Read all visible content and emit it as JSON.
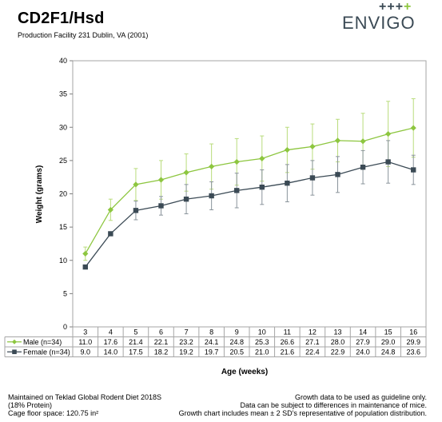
{
  "header": {
    "title": "CD2F1/Hsd",
    "subtitle": "Production Facility 231 Dublin, VA (2001)"
  },
  "logo": {
    "text": "ENVIGO",
    "crosses": "+++",
    "cross_last": "+",
    "brand_color": "#3b4a55",
    "accent_color": "#8dc63f"
  },
  "footer": {
    "left_line1": "Maintained on Teklad Global Rodent Diet 2018S",
    "left_line2": "(18% Protein)",
    "left_line3": "Cage floor space: 120.75 in²",
    "right_line1": "Growth data to be used as guideline only.",
    "right_line2": "Data can be subject to differences in maintenance of mice.",
    "right_line3": "Growth chart includes mean ± 2 SD's representative of population distribution."
  },
  "chart_data": {
    "type": "line",
    "xlabel": "Age (weeks)",
    "ylabel": "Weight (grams)",
    "ylim": [
      0,
      40
    ],
    "yticks": [
      0,
      5,
      10,
      15,
      20,
      25,
      30,
      35,
      40
    ],
    "grid": false,
    "categories": [
      "3",
      "4",
      "5",
      "6",
      "7",
      "8",
      "9",
      "10",
      "11",
      "12",
      "13",
      "14",
      "15",
      "16"
    ],
    "series": [
      {
        "name": "Male (n=34)",
        "color": "#8dc63f",
        "marker": "diamond",
        "values": [
          11.0,
          17.6,
          21.4,
          22.1,
          23.2,
          24.1,
          24.8,
          25.3,
          26.6,
          27.1,
          28.0,
          27.9,
          29.0,
          29.9
        ],
        "values_text": [
          "11.0",
          "17.6",
          "21.4",
          "22.1",
          "23.2",
          "24.1",
          "24.8",
          "25.3",
          "26.6",
          "27.1",
          "28.0",
          "27.9",
          "29.0",
          "29.9"
        ],
        "sd2": [
          1.0,
          1.6,
          2.4,
          2.9,
          2.8,
          3.4,
          3.5,
          3.4,
          3.4,
          3.4,
          3.2,
          4.2,
          4.9,
          4.4
        ]
      },
      {
        "name": "Female (n=34)",
        "color": "#3b4a55",
        "marker": "square",
        "values": [
          9.0,
          14.0,
          17.5,
          18.2,
          19.2,
          19.7,
          20.5,
          21.0,
          21.6,
          22.4,
          22.9,
          24.0,
          24.8,
          23.6
        ],
        "values_text": [
          "9.0",
          "14.0",
          "17.5",
          "18.2",
          "19.2",
          "19.7",
          "20.5",
          "21.0",
          "21.6",
          "22.4",
          "22.9",
          "24.0",
          "24.8",
          "23.6"
        ],
        "sd2": [
          0.0,
          0.0,
          1.4,
          1.4,
          2.2,
          2.1,
          2.6,
          2.6,
          2.8,
          2.6,
          2.7,
          2.5,
          3.2,
          2.2
        ]
      }
    ]
  }
}
